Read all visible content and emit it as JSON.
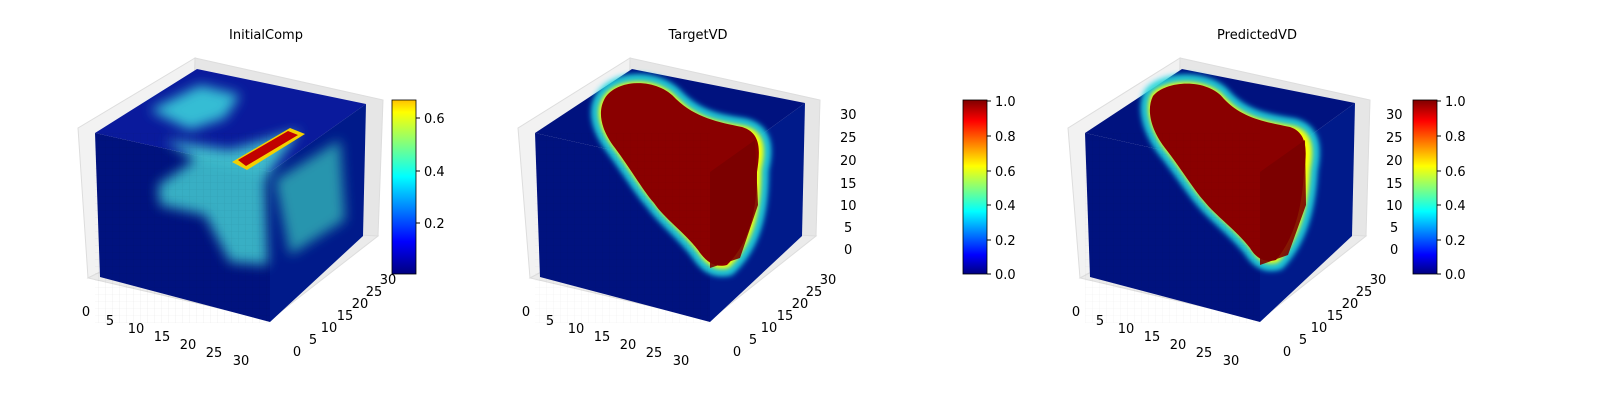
{
  "colormap": "jet",
  "chart_data": [
    {
      "type": "heatmap",
      "chart_kind": "3d-voxel-volume",
      "title": "InitialComp",
      "axes": {
        "x_ticks": [
          0,
          5,
          10,
          15,
          20,
          25,
          30
        ],
        "y_ticks": [
          0,
          5,
          10,
          15,
          20,
          25,
          30
        ],
        "z_ticks": [],
        "xlim": [
          0,
          32
        ],
        "ylim": [
          0,
          32
        ],
        "zlim": [
          0,
          32
        ]
      },
      "grid": true,
      "colorbar": {
        "min": 0.0,
        "max": 0.67,
        "ticks": [
          0.2,
          0.4,
          0.6
        ],
        "tick_labels": [
          "0.2",
          "0.4",
          "0.6"
        ],
        "placement": "right"
      },
      "field": {
        "background": 0.02,
        "region_value": 0.35,
        "bar_value": 0.67
      }
    },
    {
      "type": "heatmap",
      "chart_kind": "3d-voxel-volume",
      "title": "TargetVD",
      "axes": {
        "x_ticks": [
          0,
          5,
          10,
          15,
          20,
          25,
          30
        ],
        "y_ticks": [
          0,
          5,
          10,
          15,
          20,
          25,
          30
        ],
        "z_ticks": [
          0,
          5,
          10,
          15,
          20,
          25,
          30
        ],
        "xlim": [
          0,
          32
        ],
        "ylim": [
          0,
          32
        ],
        "zlim": [
          0,
          32
        ]
      },
      "grid": true,
      "colorbar": {
        "min": 0.0,
        "max": 1.0,
        "ticks": [
          0.0,
          0.2,
          0.4,
          0.6,
          0.8,
          1.0
        ],
        "tick_labels": [
          "0.0",
          "0.2",
          "0.4",
          "0.6",
          "0.8",
          "1.0"
        ],
        "placement": "right"
      },
      "field": {
        "background": 0.0,
        "region_value": 1.0
      }
    },
    {
      "type": "heatmap",
      "chart_kind": "3d-voxel-volume",
      "title": "PredictedVD",
      "axes": {
        "x_ticks": [
          0,
          5,
          10,
          15,
          20,
          25,
          30
        ],
        "y_ticks": [
          0,
          5,
          10,
          15,
          20,
          25,
          30
        ],
        "z_ticks": [
          0,
          5,
          10,
          15,
          20,
          25,
          30
        ],
        "xlim": [
          0,
          32
        ],
        "ylim": [
          0,
          32
        ],
        "zlim": [
          0,
          32
        ]
      },
      "grid": true,
      "colorbar": {
        "min": 0.0,
        "max": 1.0,
        "ticks": [
          0.0,
          0.2,
          0.4,
          0.6,
          0.8,
          1.0
        ],
        "tick_labels": [
          "0.0",
          "0.2",
          "0.4",
          "0.6",
          "0.8",
          "1.0"
        ],
        "placement": "right"
      },
      "field": {
        "background": 0.0,
        "region_value": 1.0
      }
    }
  ]
}
